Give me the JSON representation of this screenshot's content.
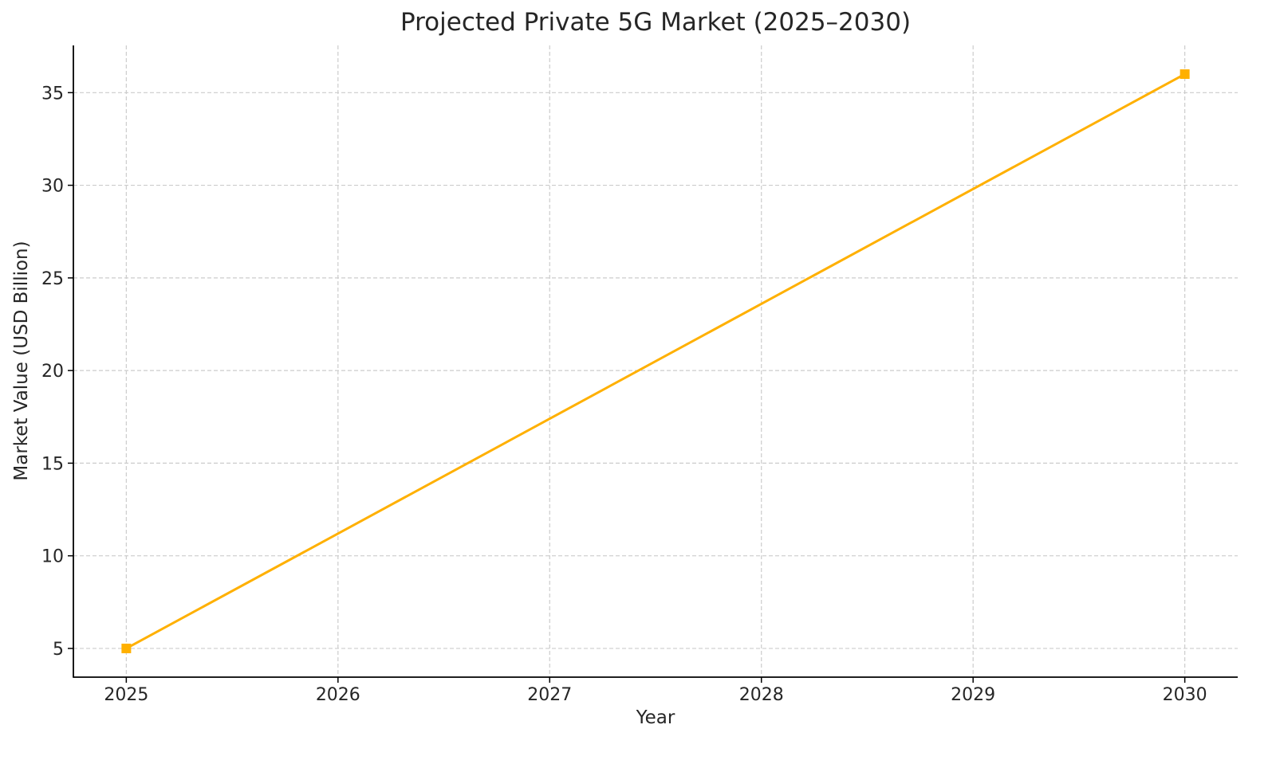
{
  "chart_data": {
    "type": "line",
    "title": "Projected Private 5G Market (2025–2030)",
    "xlabel": "Year",
    "ylabel": "Market Value (USD Billion)",
    "x": [
      2025,
      2030
    ],
    "series": [
      {
        "name": "Market Value",
        "values": [
          5,
          36
        ],
        "color": "#FFB000",
        "marker": "square"
      }
    ],
    "x_ticks": [
      "2025",
      "2026",
      "2027",
      "2028",
      "2029",
      "2030"
    ],
    "y_ticks": [
      "5",
      "10",
      "15",
      "20",
      "25",
      "30",
      "35"
    ],
    "xlim": [
      2024.75,
      2030.25
    ],
    "ylim": [
      3.45,
      37.55
    ],
    "grid": true,
    "legend": null
  }
}
